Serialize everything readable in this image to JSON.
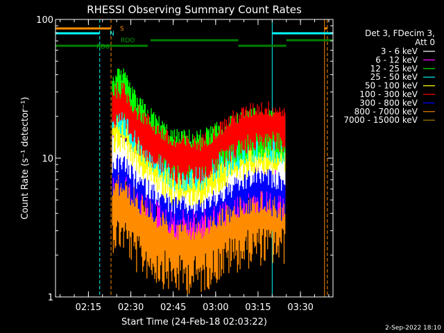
{
  "chart_data": {
    "type": "line",
    "title": "RHESSI Observing Summary Count Rates",
    "xlabel": "Start Time (24-Feb-18 02:03:22)",
    "ylabel": "Count Rate (s⁻¹ detector⁻¹)",
    "y_scale": "log",
    "ylim": [
      1,
      100
    ],
    "xlim": [
      "02:03:22",
      "03:41:30"
    ],
    "x_ticks": [
      "02:15",
      "02:30",
      "02:45",
      "03:00",
      "03:15",
      "03:30"
    ],
    "y_ticks": [
      "1",
      "10",
      "100"
    ],
    "legend_header": [
      "Det 3, FDecim 3,",
      "Att 0"
    ],
    "legend_position": "right",
    "series": [
      {
        "name": "3 - 6 keV",
        "color": "#ffffff",
        "values": [
          [
            "02:27:30",
            12
          ],
          [
            "02:32:00",
            9
          ],
          [
            "02:45:00",
            6
          ],
          [
            "02:55:00",
            6
          ],
          [
            "03:06:00",
            8
          ],
          [
            "03:15:00",
            10
          ],
          [
            "03:24:30",
            9
          ]
        ]
      },
      {
        "name": "6 - 12 keV",
        "color": "#ff00ff",
        "values": [
          [
            "02:27:30",
            10
          ],
          [
            "02:32:00",
            7
          ],
          [
            "02:45:00",
            4.5
          ],
          [
            "02:55:00",
            4.5
          ],
          [
            "03:06:00",
            6
          ],
          [
            "03:15:00",
            7
          ],
          [
            "03:24:30",
            6
          ]
        ]
      },
      {
        "name": "12 - 25 keV",
        "color": "#00ff00",
        "values": [
          [
            "02:27:30",
            30
          ],
          [
            "02:32:00",
            20
          ],
          [
            "02:45:00",
            11
          ],
          [
            "02:55:00",
            11
          ],
          [
            "03:06:00",
            14
          ],
          [
            "03:15:00",
            16
          ],
          [
            "03:24:30",
            15
          ]
        ]
      },
      {
        "name": "25 - 50 keV",
        "color": "#00ffff",
        "values": [
          [
            "02:27:30",
            22
          ],
          [
            "02:32:00",
            16
          ],
          [
            "02:45:00",
            9
          ],
          [
            "02:55:00",
            9
          ],
          [
            "03:06:00",
            12
          ],
          [
            "03:15:00",
            15
          ],
          [
            "03:24:30",
            14
          ]
        ]
      },
      {
        "name": "50 - 100 keV",
        "color": "#ffff00",
        "values": [
          [
            "02:27:30",
            17
          ],
          [
            "02:32:00",
            12
          ],
          [
            "02:45:00",
            7
          ],
          [
            "02:55:00",
            7
          ],
          [
            "03:06:00",
            10
          ],
          [
            "03:15:00",
            12
          ],
          [
            "03:24:30",
            11
          ]
        ]
      },
      {
        "name": "100 - 300 keV",
        "color": "#ff0000",
        "values": [
          [
            "02:27:30",
            24
          ],
          [
            "02:32:00",
            17
          ],
          [
            "02:45:00",
            10
          ],
          [
            "02:55:00",
            10
          ],
          [
            "03:06:00",
            15
          ],
          [
            "03:15:00",
            18
          ],
          [
            "03:24:30",
            17
          ]
        ]
      },
      {
        "name": "300 - 800 keV",
        "color": "#0000ff",
        "values": [
          [
            "02:27:30",
            9
          ],
          [
            "02:32:00",
            7
          ],
          [
            "02:45:00",
            5
          ],
          [
            "02:55:00",
            5
          ],
          [
            "03:06:00",
            6
          ],
          [
            "03:15:00",
            7
          ],
          [
            "03:24:30",
            6
          ]
        ]
      },
      {
        "name": "800 - 7000 keV",
        "color": "#ff8c00",
        "values": [
          [
            "02:27:30",
            5
          ],
          [
            "02:32:00",
            3.5
          ],
          [
            "02:45:00",
            2.5
          ],
          [
            "02:55:00",
            2.5
          ],
          [
            "03:06:00",
            3.5
          ],
          [
            "03:15:00",
            4
          ],
          [
            "03:24:30",
            4
          ]
        ]
      },
      {
        "name": "7000 - 15000 keV",
        "color": "#b8860b",
        "values": []
      }
    ],
    "flags": [
      {
        "label": "S",
        "color": "#ff8c00",
        "segments": [
          [
            "02:03:22",
            "02:23:00"
          ],
          [
            "03:38:30",
            "03:39:30"
          ]
        ]
      },
      {
        "label": "N",
        "color": "#00ffff",
        "segments": [
          [
            "02:03:22",
            "02:19:00"
          ],
          [
            "03:20:00",
            "03:41:30"
          ]
        ]
      },
      {
        "label": "RDO",
        "color": "#008000",
        "segments": [
          [
            "02:03:22",
            "02:36:00"
          ],
          [
            "02:37:00",
            "03:08:00"
          ],
          [
            "03:08:00",
            "03:25:00"
          ],
          [
            "03:25:00",
            "03:41:30"
          ]
        ]
      }
    ],
    "flag_label_extra": "RD6",
    "vertical_markers": [
      {
        "time": "02:03:22",
        "color": "#00ffff",
        "style": "solid"
      },
      {
        "time": "02:19:00",
        "color": "#00ffff",
        "style": "dashed"
      },
      {
        "time": "02:23:00",
        "color": "#ff8c00",
        "style": "dashed"
      },
      {
        "time": "03:20:00",
        "color": "#00ffff",
        "style": "solid"
      },
      {
        "time": "03:38:30",
        "color": "#ff8c00",
        "style": "solid"
      },
      {
        "time": "03:39:30",
        "color": "#ff8c00",
        "style": "dashed"
      }
    ],
    "data_start": "02:23:30",
    "data_end": "03:24:30",
    "footer_date": "2-Sep-2022 18:10"
  }
}
